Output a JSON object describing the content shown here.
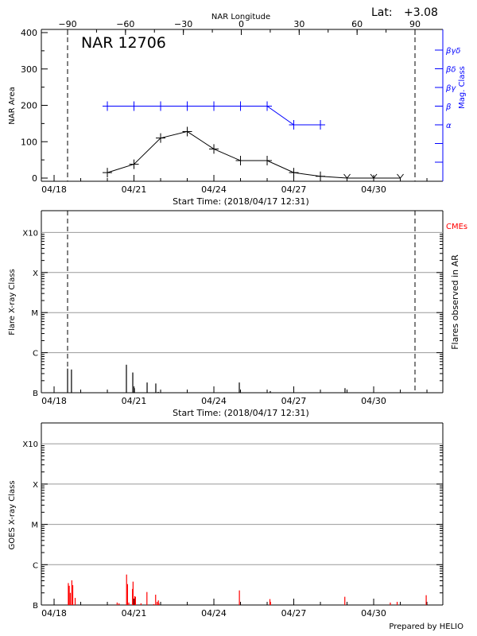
{
  "chart_data": [
    {
      "type": "line",
      "title": "NAR 12706",
      "lat_label": "Lat:",
      "lat_value": "+3.08",
      "xlabel": "Start Time: (2018/04/17 12:31)",
      "top_xlabel": "NAR Longitude",
      "ylabel": "NAR Area",
      "y2label": "Mag. Class",
      "ylim": [
        0,
        400
      ],
      "yticks": [
        "0",
        "100",
        "200",
        "300",
        "400"
      ],
      "xtick_labels": [
        "04/18",
        "04/21",
        "04/24",
        "04/27",
        "04/30"
      ],
      "top_xticks": [
        "-90",
        "-60",
        "-30",
        "0",
        "30",
        "60",
        "90"
      ],
      "limb_longitudes": [
        -90,
        90
      ],
      "mag_classes": [
        "",
        "",
        "α",
        "β",
        "βγ",
        "βδ",
        "βγδ"
      ],
      "series": [
        {
          "color": "#000000",
          "x": [
            "04/20",
            "04/21",
            "04/22",
            "04/23",
            "04/24",
            "04/25",
            "04/26",
            "04/27",
            "04/28",
            "04/29",
            "04/30",
            "05/01"
          ],
          "values": [
            15,
            38,
            110,
            128,
            80,
            48,
            48,
            15,
            5,
            0,
            0,
            0
          ]
        },
        {
          "color": "#0000ff",
          "x": [
            "04/20",
            "04/21",
            "04/22",
            "04/23",
            "04/24",
            "04/25",
            "04/26",
            "04/27",
            "04/28"
          ],
          "values": [
            "β",
            "β",
            "β",
            "β",
            "β",
            "β",
            "β",
            "α",
            "α"
          ]
        }
      ]
    },
    {
      "type": "bar",
      "xlabel": "Start Time: (2018/04/17 12:31)",
      "ylabel": "Flare X-ray Class",
      "y2label": "Flares observed in AR",
      "cme_label": "CMEs",
      "cme_color": "#ff0000",
      "yscale": "log",
      "yticks": [
        "B",
        "C",
        "M",
        "X",
        "X10"
      ],
      "xtick_labels": [
        "04/18",
        "04/21",
        "04/24",
        "04/27",
        "04/30"
      ],
      "grid": true,
      "flares": [
        {
          "time": "04/18 12:10",
          "class": "B4.0"
        },
        {
          "time": "04/18 15:40",
          "class": "B3.8"
        },
        {
          "time": "04/20 17:10",
          "class": "B5.0"
        },
        {
          "time": "04/20 22:55",
          "class": "B3.2"
        },
        {
          "time": "04/21 00:20",
          "class": "B1.3"
        },
        {
          "time": "04/21 11:50",
          "class": "B1.8"
        },
        {
          "time": "04/21 19:40",
          "class": "B1.7"
        },
        {
          "time": "04/21 21:50",
          "class": "B1.05"
        },
        {
          "time": "04/24 22:55",
          "class": "B1.8"
        },
        {
          "time": "04/26 02:50",
          "class": "B1.1"
        },
        {
          "time": "04/28 22:10",
          "class": "B1.3"
        }
      ]
    },
    {
      "type": "bar",
      "ylabel": "GOES X-ray Class",
      "yscale": "log",
      "yticks": [
        "B",
        "C",
        "M",
        "X",
        "X10"
      ],
      "xtick_labels": [
        "04/18",
        "04/21",
        "04/24",
        "04/27",
        "04/30"
      ],
      "grid": true,
      "color": "#ff0000",
      "flares": [
        {
          "time": "04/18 12:50",
          "class": "B3.5"
        },
        {
          "time": "04/18 13:40",
          "class": "B3.0"
        },
        {
          "time": "04/18 14:40",
          "class": "B2.0"
        },
        {
          "time": "04/18 16:00",
          "class": "B4.1"
        },
        {
          "time": "04/18 16:50",
          "class": "B3.1"
        },
        {
          "time": "04/18 19:00",
          "class": "B1.5"
        },
        {
          "time": "04/20 08:50",
          "class": "B1.15"
        },
        {
          "time": "04/20 10:30",
          "class": "B1.1"
        },
        {
          "time": "04/20 17:20",
          "class": "B5.7"
        },
        {
          "time": "04/20 18:10",
          "class": "B3.3"
        },
        {
          "time": "04/20 19:20",
          "class": "B1.15"
        },
        {
          "time": "04/20 22:40",
          "class": "B2.5"
        },
        {
          "time": "04/20 23:10",
          "class": "B3.8"
        },
        {
          "time": "04/21 00:40",
          "class": "B1.65"
        },
        {
          "time": "04/21 01:20",
          "class": "B1.6"
        },
        {
          "time": "04/21 06:20",
          "class": "B1.1"
        },
        {
          "time": "04/21 11:40",
          "class": "B2.1"
        },
        {
          "time": "04/21 17:50",
          "class": "B1.05"
        },
        {
          "time": "04/21 19:30",
          "class": "B1.8"
        },
        {
          "time": "04/21 20:50",
          "class": "B1.2"
        },
        {
          "time": "04/21 22:00",
          "class": "B1.3"
        },
        {
          "time": "04/21 22:30",
          "class": "B1.1"
        },
        {
          "time": "04/24 23:00",
          "class": "B2.3"
        },
        {
          "time": "04/26 02:30",
          "class": "B1.4"
        },
        {
          "time": "04/26 03:00",
          "class": "B1.2"
        },
        {
          "time": "04/28 22:00",
          "class": "B1.6"
        },
        {
          "time": "04/30 15:00",
          "class": "B1.15"
        },
        {
          "time": "04/30 21:10",
          "class": "B1.2"
        },
        {
          "time": "05/01 23:20",
          "class": "B1.75"
        }
      ]
    }
  ],
  "footer": {
    "credit": "Prepared by HELIO"
  }
}
